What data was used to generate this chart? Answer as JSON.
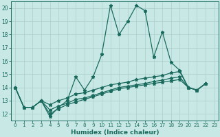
{
  "xlabel": "Humidex (Indice chaleur)",
  "xlim": [
    -0.5,
    23.5
  ],
  "ylim": [
    11.5,
    20.5
  ],
  "yticks": [
    12,
    13,
    14,
    15,
    16,
    17,
    18,
    19,
    20
  ],
  "xticks": [
    0,
    1,
    2,
    3,
    4,
    5,
    6,
    7,
    8,
    9,
    10,
    11,
    12,
    13,
    14,
    15,
    16,
    17,
    18,
    19,
    20,
    21,
    22,
    23
  ],
  "bg_color": "#c8e8e5",
  "line_color": "#1a6b5e",
  "grid_color": "#aacfcc",
  "main_x": [
    0,
    1,
    2,
    3,
    4,
    5,
    6,
    7,
    8,
    9,
    10,
    11,
    12,
    13,
    14,
    15,
    16,
    17,
    18,
    19,
    20,
    21,
    22
  ],
  "main_y": [
    14.0,
    12.5,
    12.5,
    13.0,
    11.8,
    12.5,
    13.0,
    14.8,
    13.8,
    14.8,
    16.5,
    20.2,
    18.0,
    19.0,
    20.2,
    19.8,
    16.3,
    18.2,
    15.9,
    15.3,
    14.0,
    13.8,
    14.3
  ],
  "line2_x": [
    0,
    1,
    2,
    3,
    4,
    5,
    6,
    7,
    8,
    9,
    10,
    11,
    12,
    13,
    14,
    15,
    16,
    17,
    18,
    19,
    20,
    21,
    22
  ],
  "line2_y": [
    14.0,
    12.5,
    12.5,
    13.0,
    12.7,
    13.0,
    13.2,
    13.5,
    13.6,
    13.8,
    14.0,
    14.2,
    14.3,
    14.4,
    14.6,
    14.7,
    14.8,
    14.9,
    15.1,
    15.2,
    14.0,
    13.8,
    14.3
  ],
  "line3_x": [
    0,
    1,
    2,
    3,
    4,
    5,
    6,
    7,
    8,
    9,
    10,
    11,
    12,
    13,
    14,
    15,
    16,
    17,
    18,
    19,
    20,
    21,
    22
  ],
  "line3_y": [
    14.0,
    12.5,
    12.5,
    13.0,
    12.3,
    12.6,
    12.8,
    13.1,
    13.2,
    13.4,
    13.6,
    13.8,
    14.0,
    14.1,
    14.2,
    14.3,
    14.45,
    14.55,
    14.7,
    14.8,
    14.0,
    13.8,
    14.3
  ],
  "line4_x": [
    0,
    1,
    2,
    3,
    4,
    5,
    6,
    7,
    8,
    9,
    10,
    11,
    12,
    13,
    14,
    15,
    16,
    17,
    18,
    19,
    20,
    21,
    22
  ],
  "line4_y": [
    14.0,
    12.5,
    12.5,
    13.0,
    12.0,
    12.4,
    12.7,
    12.9,
    13.1,
    13.3,
    13.5,
    13.7,
    13.9,
    14.0,
    14.1,
    14.2,
    14.3,
    14.4,
    14.5,
    14.6,
    14.0,
    13.8,
    14.3
  ]
}
